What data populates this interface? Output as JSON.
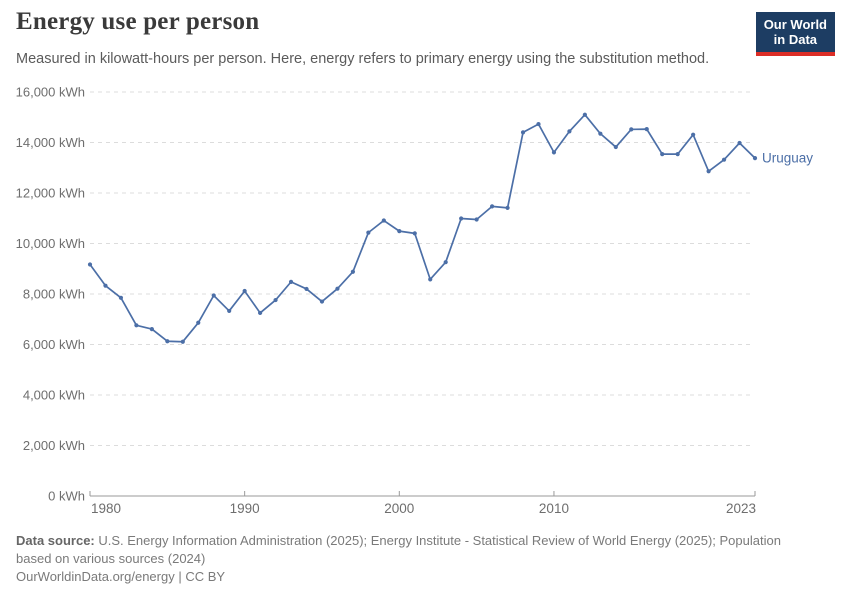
{
  "header": {
    "title": "Energy use per person",
    "subtitle": "Measured in kilowatt-hours per person. Here, energy refers to primary energy using the substitution method.",
    "logo": {
      "line1": "Our World",
      "line2": "in Data"
    }
  },
  "chart_data": {
    "type": "line",
    "title": "Energy use per person",
    "unit": "kWh",
    "xlim": [
      1980,
      2023
    ],
    "ylim": [
      0,
      16000
    ],
    "x_ticks": [
      1980,
      1990,
      2000,
      2010,
      2023
    ],
    "y_ticks": [
      0,
      2000,
      4000,
      6000,
      8000,
      10000,
      12000,
      14000,
      16000
    ],
    "y_tick_suffix": " kWh",
    "grid": "dashed-horizontal",
    "legend_position": "end-of-line-label",
    "series": [
      {
        "name": "Uruguay",
        "color": "#4C6FA7",
        "x": [
          1980,
          1981,
          1982,
          1983,
          1984,
          1985,
          1986,
          1987,
          1988,
          1989,
          1990,
          1991,
          1992,
          1993,
          1994,
          1995,
          1996,
          1997,
          1998,
          1999,
          2000,
          2001,
          2002,
          2003,
          2004,
          2005,
          2006,
          2007,
          2008,
          2009,
          2010,
          2011,
          2012,
          2013,
          2014,
          2015,
          2016,
          2017,
          2018,
          2019,
          2020,
          2021,
          2022,
          2023
        ],
        "values": [
          9170,
          8330,
          7850,
          6760,
          6610,
          6130,
          6110,
          6860,
          7940,
          7330,
          8120,
          7250,
          7760,
          8480,
          8200,
          7700,
          8210,
          8880,
          10430,
          10910,
          10490,
          10400,
          8580,
          9260,
          10990,
          10950,
          11470,
          11410,
          14400,
          14730,
          13610,
          14440,
          15100,
          14350,
          13820,
          14520,
          14530,
          13540,
          13540,
          14310,
          12860,
          13320,
          13980,
          13380
        ]
      }
    ]
  },
  "footer": {
    "datasource_label": "Data source:",
    "datasource_text": " U.S. Energy Information Administration (2025); Energy Institute - Statistical Review of World Energy (2025); Population based on various sources (2024)",
    "link_line": "OurWorldinData.org/energy | CC BY"
  },
  "colors": {
    "line": "#4C6FA7",
    "gridline": "#dcdcdc",
    "axis": "#9a9a9a",
    "axis_label": "#6e6e6e",
    "logo_bg": "#1d3d63",
    "logo_red": "#dc2d26"
  }
}
